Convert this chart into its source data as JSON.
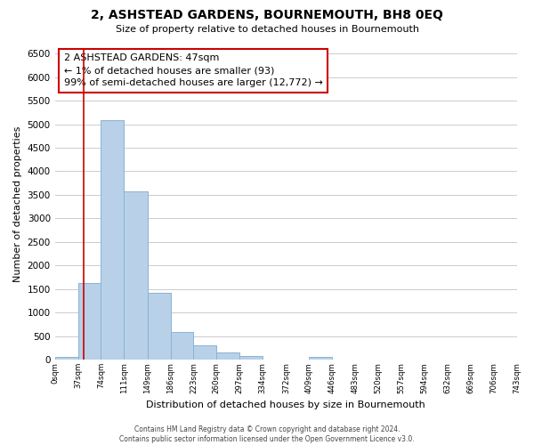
{
  "title": "2, ASHSTEAD GARDENS, BOURNEMOUTH, BH8 0EQ",
  "subtitle": "Size of property relative to detached houses in Bournemouth",
  "xlabel": "Distribution of detached houses by size in Bournemouth",
  "ylabel": "Number of detached properties",
  "bar_edges": [
    0,
    37,
    74,
    111,
    149,
    186,
    223,
    260,
    297,
    334,
    372,
    409,
    446,
    483,
    520,
    557,
    594,
    632,
    669,
    706,
    743
  ],
  "bar_heights": [
    50,
    1620,
    5080,
    3580,
    1420,
    580,
    300,
    150,
    80,
    0,
    0,
    50,
    0,
    0,
    0,
    0,
    0,
    0,
    0,
    0
  ],
  "bar_color": "#b8d0e8",
  "bar_edgecolor": "#8ab4d4",
  "ylim": [
    0,
    6600
  ],
  "yticks": [
    0,
    500,
    1000,
    1500,
    2000,
    2500,
    3000,
    3500,
    4000,
    4500,
    5000,
    5500,
    6000,
    6500
  ],
  "xtick_labels": [
    "0sqm",
    "37sqm",
    "74sqm",
    "111sqm",
    "149sqm",
    "186sqm",
    "223sqm",
    "260sqm",
    "297sqm",
    "334sqm",
    "372sqm",
    "409sqm",
    "446sqm",
    "483sqm",
    "520sqm",
    "557sqm",
    "594sqm",
    "632sqm",
    "669sqm",
    "706sqm",
    "743sqm"
  ],
  "property_line_x": 47,
  "property_line_color": "#cc0000",
  "annotation_title": "2 ASHSTEAD GARDENS: 47sqm",
  "annotation_line1": "← 1% of detached houses are smaller (93)",
  "annotation_line2": "99% of semi-detached houses are larger (12,772) →",
  "footer_line1": "Contains HM Land Registry data © Crown copyright and database right 2024.",
  "footer_line2": "Contains public sector information licensed under the Open Government Licence v3.0.",
  "background_color": "#ffffff",
  "grid_color": "#cccccc"
}
